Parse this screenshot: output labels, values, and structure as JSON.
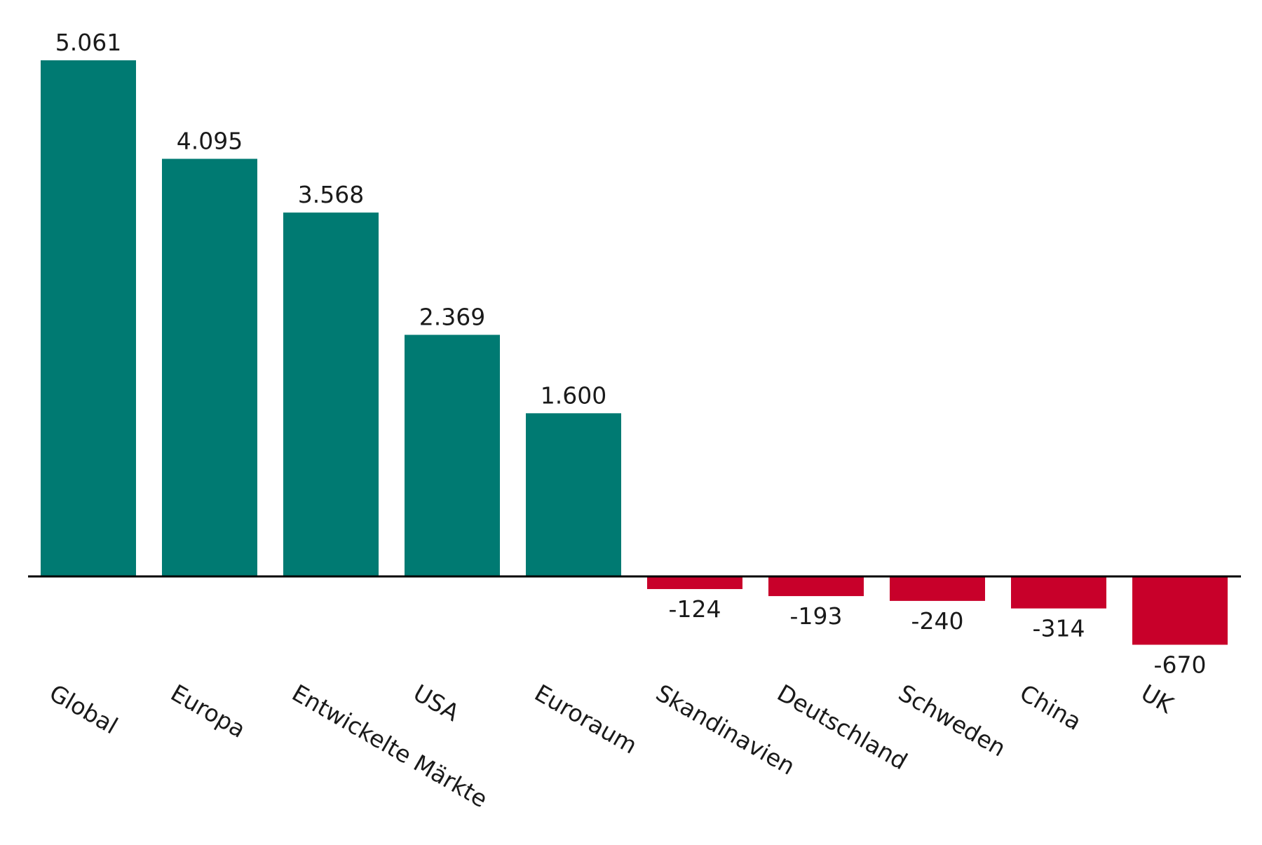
{
  "chart_data": {
    "type": "bar",
    "title": "",
    "xlabel": "",
    "ylabel": "",
    "categories": [
      "Global",
      "Europa",
      "Entwickelte Märkte",
      "USA",
      "Euroraum",
      "Skandinavien",
      "Deutschland",
      "Schweden",
      "China",
      "UK"
    ],
    "values": [
      5061,
      4095,
      3568,
      2369,
      1600,
      -124,
      -193,
      -240,
      -314,
      -670
    ],
    "value_labels": [
      "5.061",
      "4.095",
      "3.568",
      "2.369",
      "1.600",
      "-124",
      "-193",
      "-240",
      "-314",
      "-670"
    ],
    "ylim": [
      -670,
      5061
    ],
    "grid": false,
    "legend": "none",
    "colors": {
      "positive": "#007a72",
      "negative": "#c8002a",
      "axis": "#000000"
    }
  }
}
